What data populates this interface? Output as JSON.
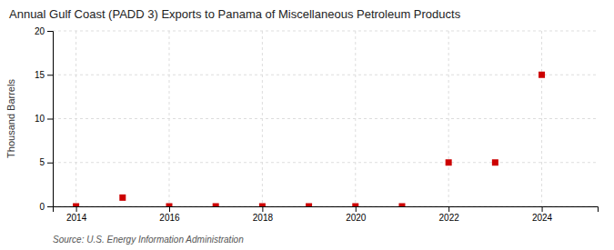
{
  "chart_data": {
    "type": "scatter",
    "title": "Annual Gulf Coast (PADD 3) Exports to Panama of Miscellaneous Petroleum Products",
    "ylabel": "Thousand Barrels",
    "annotations": [
      "Source: U.S. Energy Information Administration"
    ],
    "x": [
      2014,
      2015,
      2016,
      2017,
      2018,
      2019,
      2020,
      2021,
      2022,
      2023,
      2024
    ],
    "values": [
      0,
      1,
      0,
      0,
      0,
      0,
      0,
      0,
      5,
      5,
      15
    ],
    "color": "#cc0000",
    "marker": "square",
    "xlim": [
      2013.5,
      2025.2
    ],
    "ylim": [
      0,
      20
    ],
    "xticks": [
      2014,
      2016,
      2018,
      2020,
      2022,
      2024
    ],
    "yticks": [
      0,
      5,
      10,
      15,
      20
    ],
    "grid": true
  }
}
